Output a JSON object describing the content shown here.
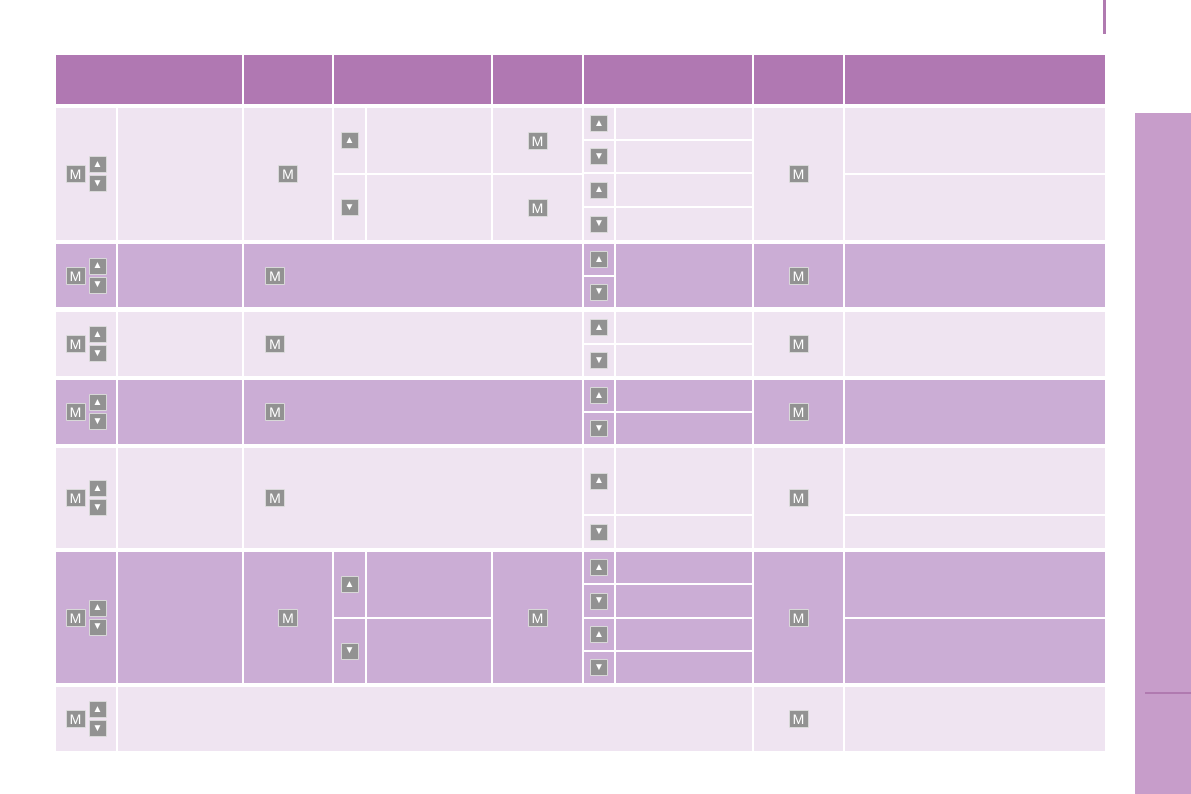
{
  "buttons": {
    "menu": "M",
    "up": "▲",
    "down": "▼"
  },
  "colors": {
    "header": "#b078b2",
    "light_row": "#efe4f1",
    "dark_row": "#cbadd5",
    "button": "#929292",
    "side_tab": "#c79dca"
  }
}
